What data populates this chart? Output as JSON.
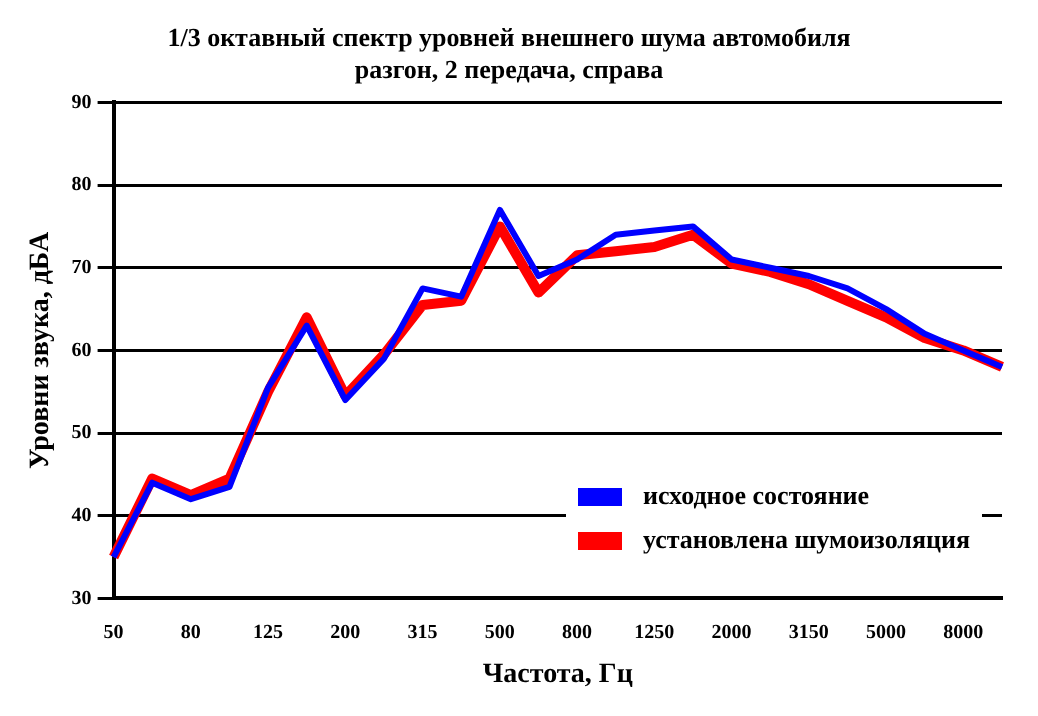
{
  "chart_data": {
    "type": "line",
    "title": "1/3 октавный спектр уровней внешнего шума автомобиля\nразгон, 2 передача, справа",
    "xlabel": "Частота, Гц",
    "ylabel": "Уровни звука, дБА",
    "categories": [
      "50",
      null,
      "80",
      null,
      "125",
      null,
      "200",
      null,
      "315",
      null,
      "500",
      null,
      "800",
      null,
      "1250",
      null,
      "2000",
      null,
      "3150",
      null,
      "5000",
      null,
      "8000",
      null
    ],
    "series": [
      {
        "name": "исходное состояние",
        "color": "#0000ff",
        "values": [
          35,
          44,
          42,
          43.5,
          55.5,
          63,
          54,
          59,
          67.5,
          66.5,
          77,
          69,
          71,
          74,
          74.5,
          75,
          71,
          70,
          69,
          67.5,
          65,
          62,
          60,
          58
        ]
      },
      {
        "name": "установлена шумоизоляция",
        "color": "#ff0000",
        "values": [
          35,
          44.5,
          42.5,
          44.5,
          55,
          64,
          54.5,
          59.5,
          65.5,
          66,
          75,
          67,
          71.5,
          72,
          72.5,
          74,
          70.5,
          69.5,
          68,
          66,
          64,
          61.5,
          60,
          58
        ]
      }
    ],
    "ylim": [
      30,
      90
    ],
    "yticks": [
      30,
      40,
      50,
      60,
      70,
      80,
      90
    ],
    "grid": "y",
    "legend": "bottom right",
    "marker": "none",
    "line_style": "solid"
  }
}
